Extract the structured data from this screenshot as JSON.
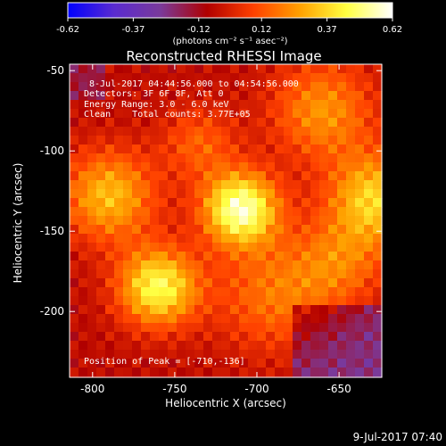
{
  "title": "Reconstructed RHESSI Image",
  "footer_timestamp": "9-Jul-2017 07:40",
  "colorbar": {
    "ticks": [
      "-0.62",
      "-0.37",
      "-0.12",
      "0.12",
      "0.37",
      "0.62"
    ],
    "range": [
      -0.62,
      0.62
    ],
    "unit_label": "(photons cm⁻² s⁻¹ asec⁻²)",
    "colormap": [
      "#0000ff",
      "#5a2bd0",
      "#7a3a9a",
      "#b00000",
      "#ff4000",
      "#ffa000",
      "#ffff40",
      "#ffffff"
    ]
  },
  "annotations": {
    "time_range": "8-Jul-2017 04:44:56.000 to 04:54:56.000",
    "detectors": "Detectors: 3F 6F 8F, Att 0",
    "energy": "Energy Range: 3.0 - 6.0 keV",
    "clean": "Clean    Total counts: 3.77E+05",
    "peak": "Position of Peak = [-710,-136]"
  },
  "chart_data": {
    "type": "heatmap",
    "title": "Reconstructed RHESSI Image",
    "xlabel": "Heliocentric X (arcsec)",
    "ylabel": "Heliocentric Y (arcsec)",
    "xlim": [
      -814,
      -624
    ],
    "ylim": [
      -241,
      -46
    ],
    "x_ticks": [
      "-800",
      "-750",
      "-700",
      "-650"
    ],
    "y_ticks": [
      "-50",
      "-100",
      "-150",
      "-200"
    ],
    "x_tick_values": [
      -800,
      -750,
      -700,
      -650
    ],
    "y_tick_values": [
      -50,
      -100,
      -150,
      -200
    ],
    "peak_position": [
      -710,
      -136
    ],
    "sources": [
      {
        "x": -710,
        "y": -136,
        "sigma": 16,
        "amp": 0.62
      },
      {
        "x": -760,
        "y": -185,
        "sigma": 17,
        "amp": 0.52
      },
      {
        "x": -790,
        "y": -128,
        "sigma": 20,
        "amp": 0.38
      },
      {
        "x": -628,
        "y": -130,
        "sigma": 20,
        "amp": 0.42
      },
      {
        "x": -660,
        "y": -75,
        "sigma": 22,
        "amp": 0.3
      },
      {
        "x": -735,
        "y": -95,
        "sigma": 16,
        "amp": 0.2
      },
      {
        "x": -690,
        "y": -190,
        "sigma": 25,
        "amp": 0.24
      },
      {
        "x": -650,
        "y": -170,
        "sigma": 20,
        "amp": 0.22
      }
    ]
  }
}
